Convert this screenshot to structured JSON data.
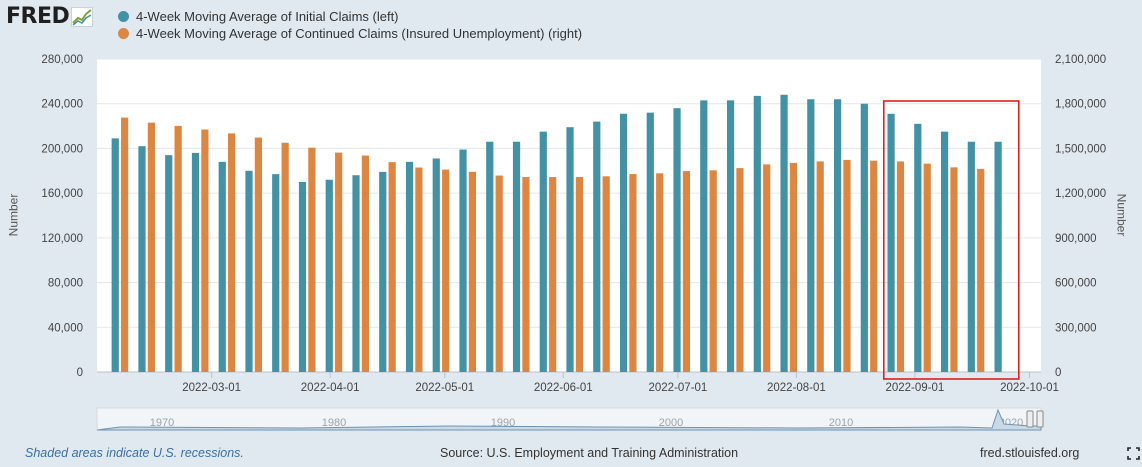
{
  "header": {
    "logo_text": "FRED",
    "logo_icon": "fred-trend-line-icon"
  },
  "colors": {
    "background": "#e1e9f0",
    "plot_background": "#ffffff",
    "series_initial": "#4391a5",
    "series_continued": "#dc8641",
    "highlight_box": "#e0201b"
  },
  "chart_data": {
    "type": "bar",
    "categories": [
      "2022-02-05",
      "2022-02-12",
      "2022-02-19",
      "2022-02-26",
      "2022-03-05",
      "2022-03-12",
      "2022-03-19",
      "2022-03-26",
      "2022-04-02",
      "2022-04-09",
      "2022-04-16",
      "2022-04-23",
      "2022-04-30",
      "2022-05-07",
      "2022-05-14",
      "2022-05-21",
      "2022-05-28",
      "2022-06-04",
      "2022-06-11",
      "2022-06-18",
      "2022-06-25",
      "2022-07-02",
      "2022-07-09",
      "2022-07-16",
      "2022-07-23",
      "2022-07-30",
      "2022-08-06",
      "2022-08-13",
      "2022-08-20",
      "2022-08-27",
      "2022-09-03",
      "2022-09-10",
      "2022-09-17",
      "2022-09-24"
    ],
    "x_tick_labels": [
      "2022-03-01",
      "2022-04-01",
      "2022-05-01",
      "2022-06-01",
      "2022-07-01",
      "2022-08-01",
      "2022-09-01",
      "2022-10-01"
    ],
    "series": [
      {
        "name": "4-Week Moving Average of Initial Claims (left)",
        "axis": "left",
        "color": "#4391a5",
        "values": [
          209000,
          202000,
          194000,
          196000,
          188000,
          180000,
          177000,
          170000,
          172000,
          176000,
          179000,
          188000,
          191000,
          199000,
          206000,
          206000,
          215000,
          219000,
          224000,
          231000,
          232000,
          236000,
          243000,
          243000,
          247000,
          248000,
          244000,
          244000,
          240000,
          231000,
          222000,
          215000,
          206000,
          206000
        ]
      },
      {
        "name": "4-Week Moving Average of Continued Claims (Insured Unemployment) (right)",
        "axis": "right",
        "color": "#dc8641",
        "values": [
          1707000,
          1673000,
          1651000,
          1627000,
          1601000,
          1573000,
          1538000,
          1505000,
          1472000,
          1452000,
          1408000,
          1372000,
          1358000,
          1343000,
          1318000,
          1308000,
          1308000,
          1308000,
          1313000,
          1328000,
          1333000,
          1348000,
          1353000,
          1368000,
          1393000,
          1403000,
          1413000,
          1423000,
          1418000,
          1413000,
          1398000,
          1373000,
          1363000,
          null
        ]
      }
    ],
    "y_left": {
      "label": "Number",
      "min": 0,
      "max": 280000,
      "ticks": [
        "0",
        "40,000",
        "80,000",
        "120,000",
        "160,000",
        "200,000",
        "240,000",
        "280,000"
      ]
    },
    "y_right": {
      "label": "Number",
      "min": 0,
      "max": 2100000,
      "ticks": [
        "0",
        "300,000",
        "600,000",
        "900,000",
        "1,200,000",
        "1,500,000",
        "1,800,000",
        "2,100,000"
      ]
    },
    "grid": true,
    "legend_position": "top-left",
    "navigator_labels": [
      "1970",
      "1980",
      "1990",
      "2000",
      "2010",
      "2020"
    ],
    "highlight_region": {
      "from": "2022-08-27",
      "to": "2022-09-24"
    }
  },
  "footer": {
    "recession_note": "Shaded areas indicate U.S. recessions.",
    "source": "Source: U.S. Employment and Training Administration",
    "link": "fred.stlouisfed.org",
    "fullscreen_icon": "fullscreen-icon"
  }
}
